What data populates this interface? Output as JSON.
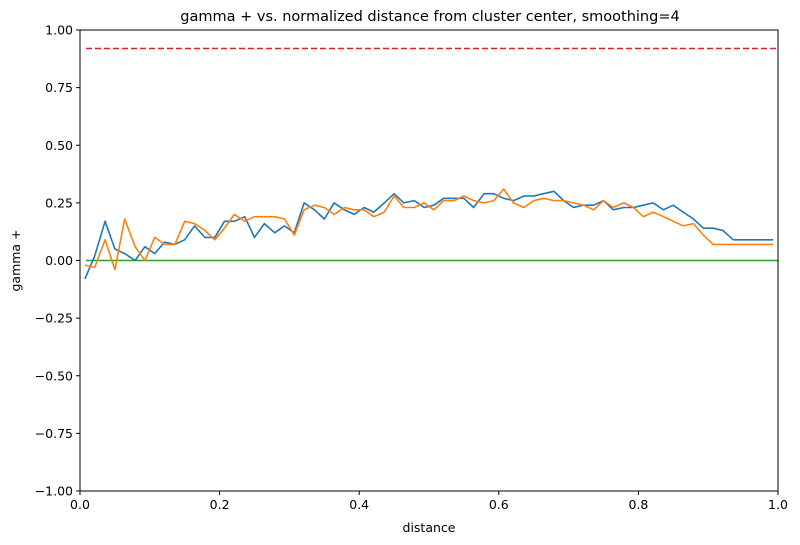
{
  "chart_data": {
    "type": "line",
    "title": "gamma + vs. normalized distance from cluster center, smoothing=4",
    "xlabel": "distance",
    "ylabel": "gamma +",
    "xlim": [
      0.0,
      1.0
    ],
    "ylim": [
      -1.0,
      1.0
    ],
    "x_ticks": [
      0.0,
      0.2,
      0.4,
      0.6,
      0.8,
      1.0
    ],
    "x_tick_labels": [
      "0.0",
      "0.2",
      "0.4",
      "0.6",
      "0.8",
      "1.0"
    ],
    "y_ticks": [
      -1.0,
      -0.75,
      -0.5,
      -0.25,
      0.0,
      0.25,
      0.5,
      0.75,
      1.0
    ],
    "y_tick_labels": [
      "−1.00",
      "−0.75",
      "−0.50",
      "−0.25",
      "0.00",
      "0.25",
      "0.50",
      "0.75",
      "1.00"
    ],
    "grid": false,
    "x": [
      0.007,
      0.021,
      0.036,
      0.05,
      0.064,
      0.079,
      0.093,
      0.107,
      0.121,
      0.136,
      0.15,
      0.164,
      0.179,
      0.193,
      0.207,
      0.221,
      0.236,
      0.25,
      0.264,
      0.279,
      0.293,
      0.307,
      0.321,
      0.336,
      0.35,
      0.364,
      0.379,
      0.393,
      0.407,
      0.421,
      0.436,
      0.45,
      0.464,
      0.479,
      0.493,
      0.507,
      0.521,
      0.536,
      0.55,
      0.564,
      0.579,
      0.593,
      0.607,
      0.621,
      0.636,
      0.65,
      0.664,
      0.679,
      0.693,
      0.707,
      0.721,
      0.736,
      0.75,
      0.764,
      0.779,
      0.793,
      0.807,
      0.821,
      0.836,
      0.85,
      0.864,
      0.879,
      0.893,
      0.907,
      0.921,
      0.936,
      0.95,
      0.964,
      0.979,
      0.993
    ],
    "series": [
      {
        "color": "#1f77b4",
        "values": [
          -0.08,
          0.02,
          0.17,
          0.05,
          0.03,
          0.0,
          0.06,
          0.03,
          0.08,
          0.07,
          0.09,
          0.15,
          0.1,
          0.1,
          0.17,
          0.17,
          0.19,
          0.1,
          0.16,
          0.12,
          0.15,
          0.12,
          0.25,
          0.22,
          0.18,
          0.25,
          0.22,
          0.2,
          0.23,
          0.21,
          0.25,
          0.29,
          0.25,
          0.26,
          0.23,
          0.24,
          0.27,
          0.27,
          0.27,
          0.23,
          0.29,
          0.29,
          0.27,
          0.26,
          0.28,
          0.28,
          0.29,
          0.3,
          0.26,
          0.23,
          0.24,
          0.24,
          0.26,
          0.22,
          0.23,
          0.23,
          0.24,
          0.25,
          0.22,
          0.24,
          0.21,
          0.18,
          0.14,
          0.14,
          0.13,
          0.09,
          0.09,
          0.09,
          0.09,
          0.09
        ]
      },
      {
        "color": "#ff7f0e",
        "values": [
          -0.02,
          -0.03,
          0.09,
          -0.04,
          0.18,
          0.06,
          0.0,
          0.1,
          0.07,
          0.07,
          0.17,
          0.16,
          0.13,
          0.09,
          0.14,
          0.2,
          0.17,
          0.19,
          0.19,
          0.19,
          0.18,
          0.11,
          0.22,
          0.24,
          0.23,
          0.2,
          0.23,
          0.22,
          0.22,
          0.19,
          0.21,
          0.28,
          0.23,
          0.23,
          0.25,
          0.22,
          0.26,
          0.26,
          0.28,
          0.26,
          0.25,
          0.26,
          0.31,
          0.25,
          0.23,
          0.26,
          0.27,
          0.26,
          0.26,
          0.25,
          0.24,
          0.22,
          0.26,
          0.23,
          0.25,
          0.23,
          0.19,
          0.21,
          0.19,
          0.17,
          0.15,
          0.16,
          0.11,
          0.07,
          0.07,
          0.07,
          0.07,
          0.07,
          0.07,
          0.07
        ]
      }
    ],
    "hlines": [
      {
        "y": 0.0,
        "color": "#2ca02c",
        "style": "solid"
      },
      {
        "y": 0.92,
        "color": "#d62728",
        "style": "dashed"
      }
    ]
  }
}
